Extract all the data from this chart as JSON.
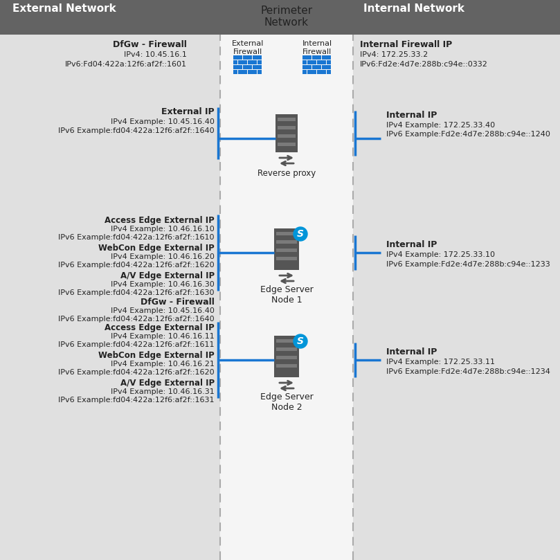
{
  "header_bg": "#636363",
  "body_bg": "#e0e0e0",
  "perimeter_bg": "#f5f5f5",
  "blue_line": "#1976d2",
  "text_dark": "#222222",
  "header_text": "#ffffff",
  "external_label": "External Network",
  "perimeter_label": "Perimeter\nNetwork",
  "internal_label": "Internal Network",
  "dfgw_title": "DfGw - Firewall",
  "dfgw_ip4": "IPv4: 10.45.16.1",
  "dfgw_ip6": "IPv6:Fd04:422a:12f6:af2f::1601",
  "int_fw_title": "Internal Firewall IP",
  "int_fw_ip4": "IPv4: 172.25.33.2",
  "int_fw_ip6": "IPv6:Fd2e:4d7e:288b:c94e::0332",
  "ext_fw_label": "External\nFirewall",
  "int_fw_label": "Internal\nFirewall",
  "rp_ext_title": "External IP",
  "rp_ext_ip4": "IPv4 Example: 10.45.16.40",
  "rp_ext_ip6": "IPv6 Example:fd04:422a:12f6:af2f::1640",
  "rp_int_title": "Internal IP",
  "rp_int_ip4": "IPv4 Example: 172.25.33.40",
  "rp_int_ip6": "IPv6 Example:Fd2e:4d7e:288b:c94e::1240",
  "rp_label": "Reverse proxy",
  "node1_access_title": "Access Edge External IP",
  "node1_access_ip4": "IPv4 Example: 10.46.16.10",
  "node1_access_ip6": "IPv6 Example:fd04:422a:12f6:af2f::1610",
  "node1_webcon_title": "WebCon Edge External IP",
  "node1_webcon_ip4": "IPv4 Example: 10.46.16.20",
  "node1_webcon_ip6": "IPv6 Example:fd04:422a:12f6:af2f::1620",
  "node1_av_title": "A/V Edge External IP",
  "node1_av_ip4": "IPv4 Example: 10.46.16.30",
  "node1_av_ip6": "IPv6 Example:fd04:422a:12f6:af2f::1630",
  "node1_int_title": "Internal IP",
  "node1_int_ip4": "IPv4 Example: 172.25.33.10",
  "node1_int_ip6": "IPv6 Example:Fd2e:4d7e:288b:c94e::1233",
  "node1_label": "Edge Server\nNode 1",
  "node1_dfgw_title": "DfGw - Firewall",
  "node1_dfgw_ip4": "IPv4 Example: 10.45.16.40",
  "node1_dfgw_ip6": "IPv6 Example:fd04:422a:12f6:af2f::1640",
  "node2_access_title": "Access Edge External IP",
  "node2_access_ip4b": "IPv4 Example: 10.46.16.11",
  "node2_access_ip6": "IPv6 Example:fd04:422a:12f6:af2f::1611",
  "node2_webcon_title": "WebCon Edge External IP",
  "node2_webcon_ip4": "IPv4 Example: 10.46.16.21",
  "node2_webcon_ip6": "IPv6 Example:fd04:422a:12f6:af2f::1620",
  "node2_av_title": "A/V Edge External IP",
  "node2_av_ip4": "IPv4 Example: 10.46.16.31",
  "node2_av_ip6": "IPv6 Example:fd04:422a:12f6:af2f::1631",
  "node2_int_title": "Internal IP",
  "node2_int_ip4": "IPv4 Example: 172.25.33.11",
  "node2_int_ip6": "IPv6 Example:Fd2e:4d7e:288b:c94e::1234",
  "node2_label": "Edge Server\nNode 2"
}
